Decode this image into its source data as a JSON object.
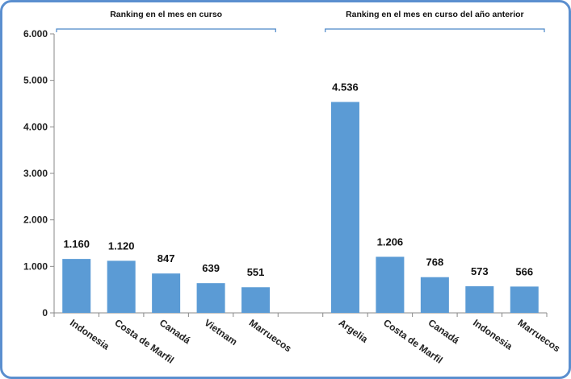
{
  "chart_data": {
    "type": "bar",
    "ylim": [
      0,
      6000
    ],
    "yticks": [
      0,
      1000,
      2000,
      3000,
      4000,
      5000,
      6000
    ],
    "ytick_labels": [
      "0",
      "1.000",
      "2.000",
      "3.000",
      "4.000",
      "5.000",
      "6.000"
    ],
    "grid": false,
    "bar_color": "#5b9bd5",
    "groups": [
      {
        "label": "Ranking en el mes en curso",
        "categories": [
          "Indonesia",
          "Costa de Marfil",
          "Canadá",
          "Vietnam",
          "Marruecos"
        ],
        "values": [
          1160,
          1120,
          847,
          639,
          551
        ],
        "value_labels": [
          "1.160",
          "1.120",
          "847",
          "639",
          "551"
        ]
      },
      {
        "label": "Ranking en el mes en curso del año anterior",
        "categories": [
          "Argelia",
          "Costa de Marfil",
          "Canadá",
          "Indonesia",
          "Marruecos"
        ],
        "values": [
          4536,
          1206,
          768,
          573,
          566
        ],
        "value_labels": [
          "4.536",
          "1.206",
          "768",
          "573",
          "566"
        ]
      }
    ]
  }
}
